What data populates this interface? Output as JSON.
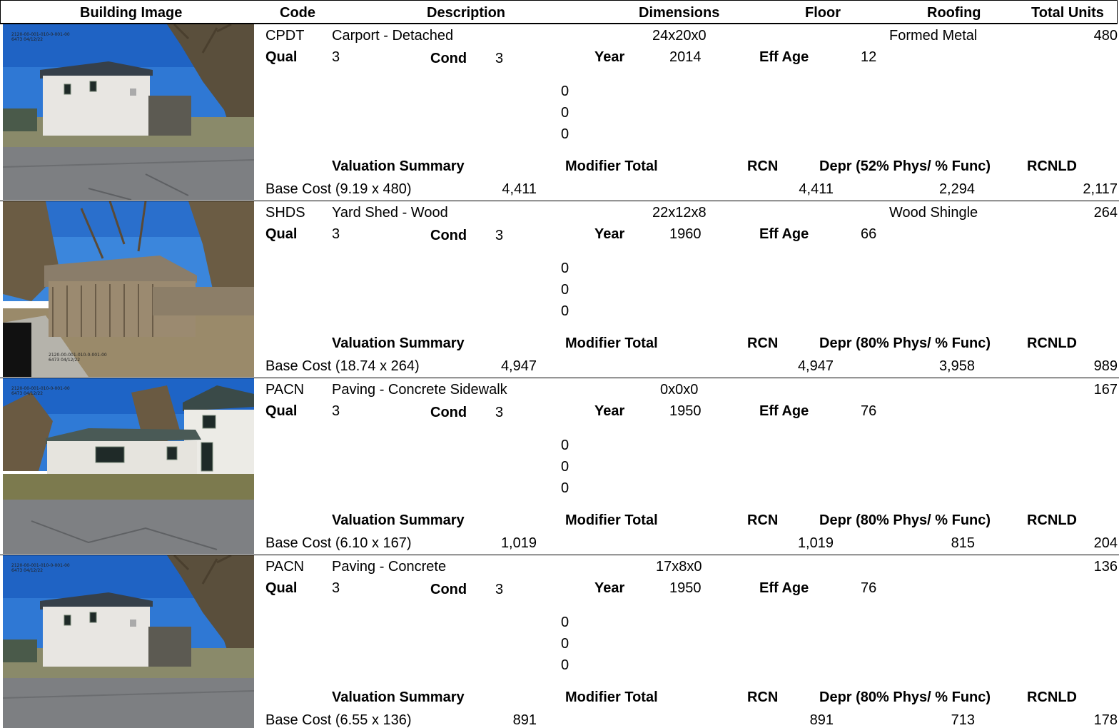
{
  "header": {
    "building_image": "Building Image",
    "code": "Code",
    "description": "Description",
    "dimensions": "Dimensions",
    "floor": "Floor",
    "roofing": "Roofing",
    "total_units": "Total Units"
  },
  "rows": [
    {
      "photo_stamp_1": "2120-00-001-010-0-001-00",
      "photo_stamp_2": "6473   04/12/22",
      "code": "CPDT",
      "description": "Carport - Detached",
      "dimensions": "24x20x0",
      "roofing": "Formed Metal",
      "total_units": "480",
      "qual_label": "Qual",
      "qual": "3",
      "cond_label": "Cond",
      "cond": "3",
      "year_label": "Year",
      "year": "2014",
      "eff_age_label": "Eff Age",
      "eff_age": "12",
      "zero1": "0",
      "zero2": "0",
      "zero3": "0",
      "valuation_label": "Valuation Summary",
      "modifier_label": "Modifier Total",
      "rcn_label": "RCN",
      "depr_label": "Depr (52% Phys/ % Func)",
      "rcnld_label": "RCNLD",
      "base_cost": "Base Cost (9.19 x 480)",
      "base_value": "4,411",
      "rcn": "4,411",
      "depr": "2,294",
      "rcnld": "2,117"
    },
    {
      "photo_stamp_1": "2120-00-001-010-0-001-00",
      "photo_stamp_2": "6473   04/12/22",
      "code": "SHDS",
      "description": "Yard Shed - Wood",
      "dimensions": "22x12x8",
      "roofing": "Wood Shingle",
      "total_units": "264",
      "qual_label": "Qual",
      "qual": "3",
      "cond_label": "Cond",
      "cond": "3",
      "year_label": "Year",
      "year": "1960",
      "eff_age_label": "Eff Age",
      "eff_age": "66",
      "zero1": "0",
      "zero2": "0",
      "zero3": "0",
      "valuation_label": "Valuation Summary",
      "modifier_label": "Modifier Total",
      "rcn_label": "RCN",
      "depr_label": "Depr (80% Phys/ % Func)",
      "rcnld_label": "RCNLD",
      "base_cost": "Base Cost (18.74 x 264)",
      "base_value": "4,947",
      "rcn": "4,947",
      "depr": "3,958",
      "rcnld": "989"
    },
    {
      "photo_stamp_1": "2120-00-001-010-0-001-00",
      "photo_stamp_2": "6473   04/12/22",
      "code": "PACN",
      "description": "Paving - Concrete Sidewalk",
      "dimensions": "0x0x0",
      "roofing": "",
      "total_units": "167",
      "qual_label": "Qual",
      "qual": "3",
      "cond_label": "Cond",
      "cond": "3",
      "year_label": "Year",
      "year": "1950",
      "eff_age_label": "Eff Age",
      "eff_age": "76",
      "zero1": "0",
      "zero2": "0",
      "zero3": "0",
      "valuation_label": "Valuation Summary",
      "modifier_label": "Modifier Total",
      "rcn_label": "RCN",
      "depr_label": "Depr (80% Phys/ % Func)",
      "rcnld_label": "RCNLD",
      "base_cost": "Base Cost (6.10 x 167)",
      "base_value": "1,019",
      "rcn": "1,019",
      "depr": "815",
      "rcnld": "204"
    },
    {
      "photo_stamp_1": "2120-00-001-010-0-001-00",
      "photo_stamp_2": "6473   04/12/22",
      "code": "PACN",
      "description": "Paving - Concrete",
      "dimensions": "17x8x0",
      "roofing": "",
      "total_units": "136",
      "qual_label": "Qual",
      "qual": "3",
      "cond_label": "Cond",
      "cond": "3",
      "year_label": "Year",
      "year": "1950",
      "eff_age_label": "Eff Age",
      "eff_age": "76",
      "zero1": "0",
      "zero2": "0",
      "zero3": "0",
      "valuation_label": "Valuation Summary",
      "modifier_label": "Modifier Total",
      "rcn_label": "RCN",
      "depr_label": "Depr (80% Phys/ % Func)",
      "rcnld_label": "RCNLD",
      "base_cost": "Base Cost (6.55 x 136)",
      "base_value": "891",
      "rcn": "891",
      "depr": "713",
      "rcnld": "178"
    }
  ]
}
